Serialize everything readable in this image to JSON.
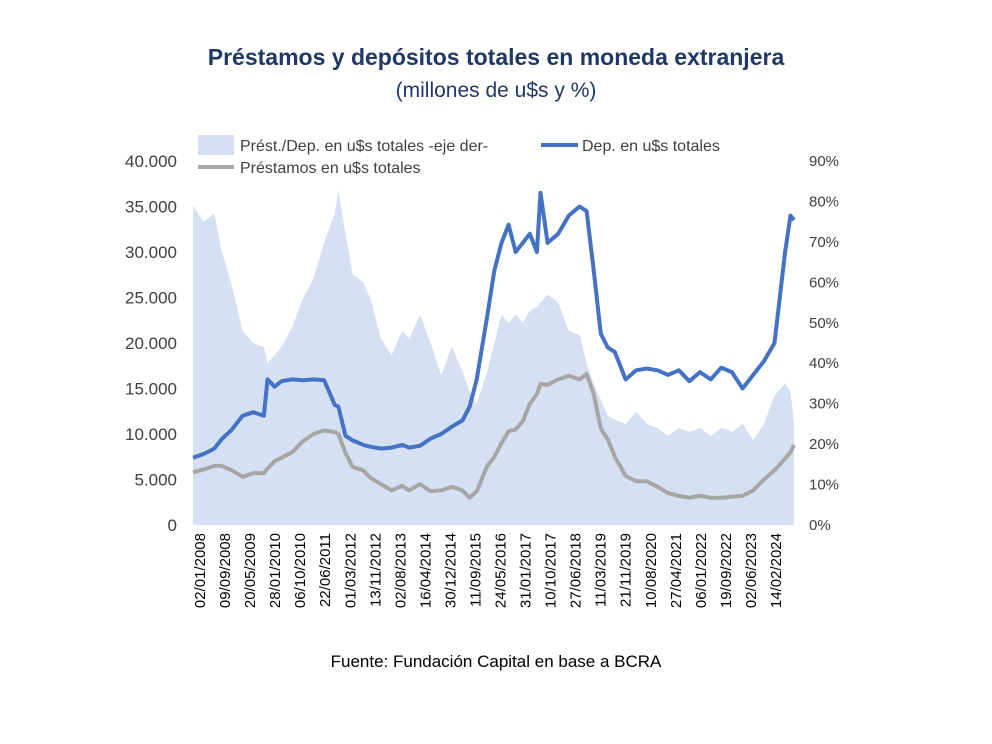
{
  "chart_data": {
    "type": "line",
    "title": "Préstamos y depósitos totales en moneda extranjera",
    "subtitle": "(millones de u$s y %)",
    "source": "Fuente: Fundación Capital en base a BCRA",
    "x_tick_labels": [
      "02/01/2008",
      "09/09/2008",
      "20/05/2009",
      "28/01/2010",
      "06/10/2010",
      "22/06/2011",
      "01/03/2012",
      "13/11/2012",
      "02/08/2013",
      "16/04/2014",
      "30/12/2014",
      "11/09/2015",
      "24/05/2016",
      "31/01/2017",
      "10/10/2017",
      "27/06/2018",
      "11/03/2019",
      "21/11/2019",
      "10/08/2020",
      "27/04/2021",
      "06/01/2022",
      "19/09/2022",
      "02/06/2023",
      "14/02/2024"
    ],
    "y_left": {
      "ticks": [
        "0",
        "5.000",
        "10.000",
        "15.000",
        "20.000",
        "25.000",
        "30.000",
        "35.000",
        "40.000"
      ],
      "min": 0,
      "max": 40000
    },
    "y_right": {
      "ticks": [
        "0%",
        "10%",
        "20%",
        "30%",
        "40%",
        "50%",
        "60%",
        "70%",
        "80%",
        "90%"
      ],
      "min": 0,
      "max": 90
    },
    "legend_position": "top",
    "x": [
      2008.0,
      2008.3,
      2008.6,
      2008.8,
      2009.1,
      2009.4,
      2009.7,
      2010.0,
      2010.1,
      2010.3,
      2010.5,
      2010.8,
      2011.1,
      2011.4,
      2011.7,
      2012.0,
      2012.1,
      2012.3,
      2012.5,
      2012.8,
      2013.0,
      2013.3,
      2013.6,
      2013.9,
      2014.1,
      2014.4,
      2014.7,
      2015.0,
      2015.3,
      2015.6,
      2015.8,
      2016.0,
      2016.3,
      2016.5,
      2016.7,
      2016.9,
      2017.1,
      2017.3,
      2017.5,
      2017.7,
      2017.8,
      2018.0,
      2018.3,
      2018.6,
      2018.9,
      2019.1,
      2019.3,
      2019.5,
      2019.7,
      2019.9,
      2020.2,
      2020.5,
      2020.8,
      2021.1,
      2021.4,
      2021.7,
      2022.0,
      2022.3,
      2022.6,
      2022.9,
      2023.2,
      2023.5,
      2023.8,
      2024.1,
      2024.4,
      2024.7,
      2024.85,
      2024.95
    ],
    "series": [
      {
        "name": "Prést./Dep. en u$s totales -eje der-",
        "axis": "right",
        "type": "area",
        "color": "#d6e0f3",
        "values": [
          79,
          75,
          77,
          68,
          59,
          48,
          45,
          44,
          40,
          42,
          44,
          49,
          56,
          61,
          70,
          77,
          83,
          72,
          62,
          60,
          56,
          46,
          42,
          48,
          46,
          52,
          45,
          37,
          44,
          38,
          33,
          30,
          38,
          45,
          52,
          50,
          52,
          50,
          53,
          54,
          55,
          57,
          55,
          48,
          47,
          40,
          35,
          31,
          27,
          26,
          25,
          28,
          25,
          24,
          22,
          24,
          23,
          24,
          22,
          24,
          23,
          25,
          21,
          25,
          32,
          35,
          33,
          25
        ]
      },
      {
        "name": "Dep. en u$s totales",
        "axis": "left",
        "type": "line",
        "color": "#4472c4",
        "values": [
          7400,
          7800,
          8400,
          9400,
          10500,
          12000,
          12400,
          12000,
          16000,
          15200,
          15800,
          16000,
          15900,
          16000,
          15900,
          13200,
          13000,
          9800,
          9300,
          8800,
          8600,
          8400,
          8500,
          8800,
          8500,
          8700,
          9500,
          10000,
          10800,
          11500,
          13000,
          16000,
          23000,
          28000,
          31000,
          33000,
          30000,
          31000,
          32000,
          30000,
          36500,
          31000,
          32000,
          34000,
          35000,
          34500,
          28000,
          21000,
          19500,
          19000,
          16000,
          17000,
          17200,
          17000,
          16500,
          17000,
          15800,
          16800,
          16000,
          17300,
          16800,
          15000,
          16500,
          18000,
          20000,
          30000,
          34000,
          33500
        ]
      },
      {
        "name": "Préstamos en u$s totales",
        "axis": "left",
        "type": "line",
        "color": "#a6a6a6",
        "values": [
          5800,
          6100,
          6500,
          6500,
          6000,
          5300,
          5700,
          5700,
          6200,
          7000,
          7400,
          8000,
          9200,
          10000,
          10400,
          10200,
          10000,
          7900,
          6400,
          6000,
          5200,
          4500,
          3800,
          4300,
          3800,
          4500,
          3700,
          3800,
          4200,
          3800,
          3000,
          3700,
          6500,
          7500,
          9000,
          10300,
          10500,
          11400,
          13300,
          14400,
          15500,
          15400,
          16000,
          16400,
          16000,
          16600,
          14400,
          10600,
          9400,
          7500,
          5400,
          4800,
          4800,
          4200,
          3500,
          3200,
          3000,
          3200,
          3000,
          3000,
          3100,
          3200,
          3800,
          5000,
          6000,
          7300,
          8000,
          8800
        ]
      }
    ]
  }
}
